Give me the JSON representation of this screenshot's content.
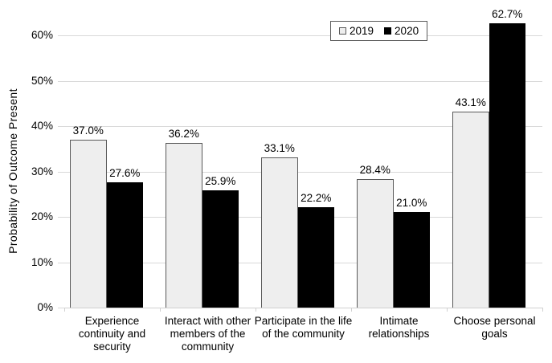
{
  "chart_data": {
    "type": "bar",
    "title": "",
    "xlabel": "",
    "ylabel": "Probability of Outcome Present",
    "ylim": [
      0,
      65
    ],
    "ytick_step": 10,
    "yticks": [
      "0%",
      "10%",
      "20%",
      "30%",
      "40%",
      "50%",
      "60%"
    ],
    "grid": true,
    "legend_position": "top-center-inside",
    "categories": [
      "Experience continuity and security",
      "Interact with other members of the community",
      "Participate in the life of the community",
      "Intimate relationships",
      "Choose personal goals"
    ],
    "series": [
      {
        "name": "2019",
        "values": [
          37.0,
          36.2,
          33.1,
          28.4,
          43.1
        ],
        "labels": [
          "37.0%",
          "36.2%",
          "33.1%",
          "28.4%",
          "43.1%"
        ],
        "fill": "#eeeeee",
        "border": "#595959"
      },
      {
        "name": "2020",
        "values": [
          27.6,
          25.9,
          22.2,
          21.0,
          62.7
        ],
        "labels": [
          "27.6%",
          "25.9%",
          "22.2%",
          "21.0%",
          "62.7%"
        ],
        "fill": "#000000",
        "border": "#000000"
      }
    ]
  },
  "colors": {
    "background": "#ffffff",
    "gridline": "#d9d9d9",
    "axis_line": "#d0d0d0",
    "text": "#000000",
    "legend_border": "#595959"
  }
}
